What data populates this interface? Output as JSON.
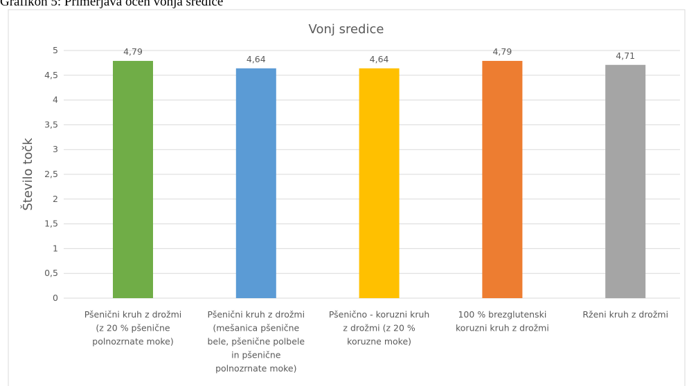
{
  "caption": "Grafikon 5: Primerjava ocen vonja sredice",
  "chart_data": {
    "type": "bar",
    "title": "Vonj sredice",
    "y_label": "Število točk",
    "categories": [
      [
        "Pšenični kruh z drožmi",
        "(z 20 % pšenične",
        "polnozrnate moke)"
      ],
      [
        "Pšenični kruh z drožmi",
        "(mešanica pšenične",
        "bele, pšenične polbele",
        "in pšenične",
        "polnozrnate moke)"
      ],
      [
        "Pšenično - koruzni kruh",
        "z drožmi (z 20 %",
        "koruzne moke)"
      ],
      [
        "100 % brezglutenski",
        "koruzni kruh z drožmi"
      ],
      [
        "Rženi kruh z drožmi"
      ]
    ],
    "values": [
      4.79,
      4.64,
      4.64,
      4.79,
      4.71
    ],
    "value_labels": [
      "4,79",
      "4,64",
      "4,64",
      "4,79",
      "4,71"
    ],
    "colors": [
      "#70ad47",
      "#5b9bd5",
      "#ffc000",
      "#ed7d31",
      "#a5a5a5"
    ],
    "ylim": [
      0,
      5
    ],
    "yticks": [
      0,
      {
        "value": 0.5,
        "label": "0,5"
      },
      1,
      {
        "value": 1.5,
        "label": "1,5"
      },
      2,
      {
        "value": 2.5,
        "label": "2,5"
      },
      3,
      {
        "value": 3.5,
        "label": "3,5"
      },
      4,
      {
        "value": 4.5,
        "label": "4,5"
      },
      5
    ],
    "grid": true
  }
}
